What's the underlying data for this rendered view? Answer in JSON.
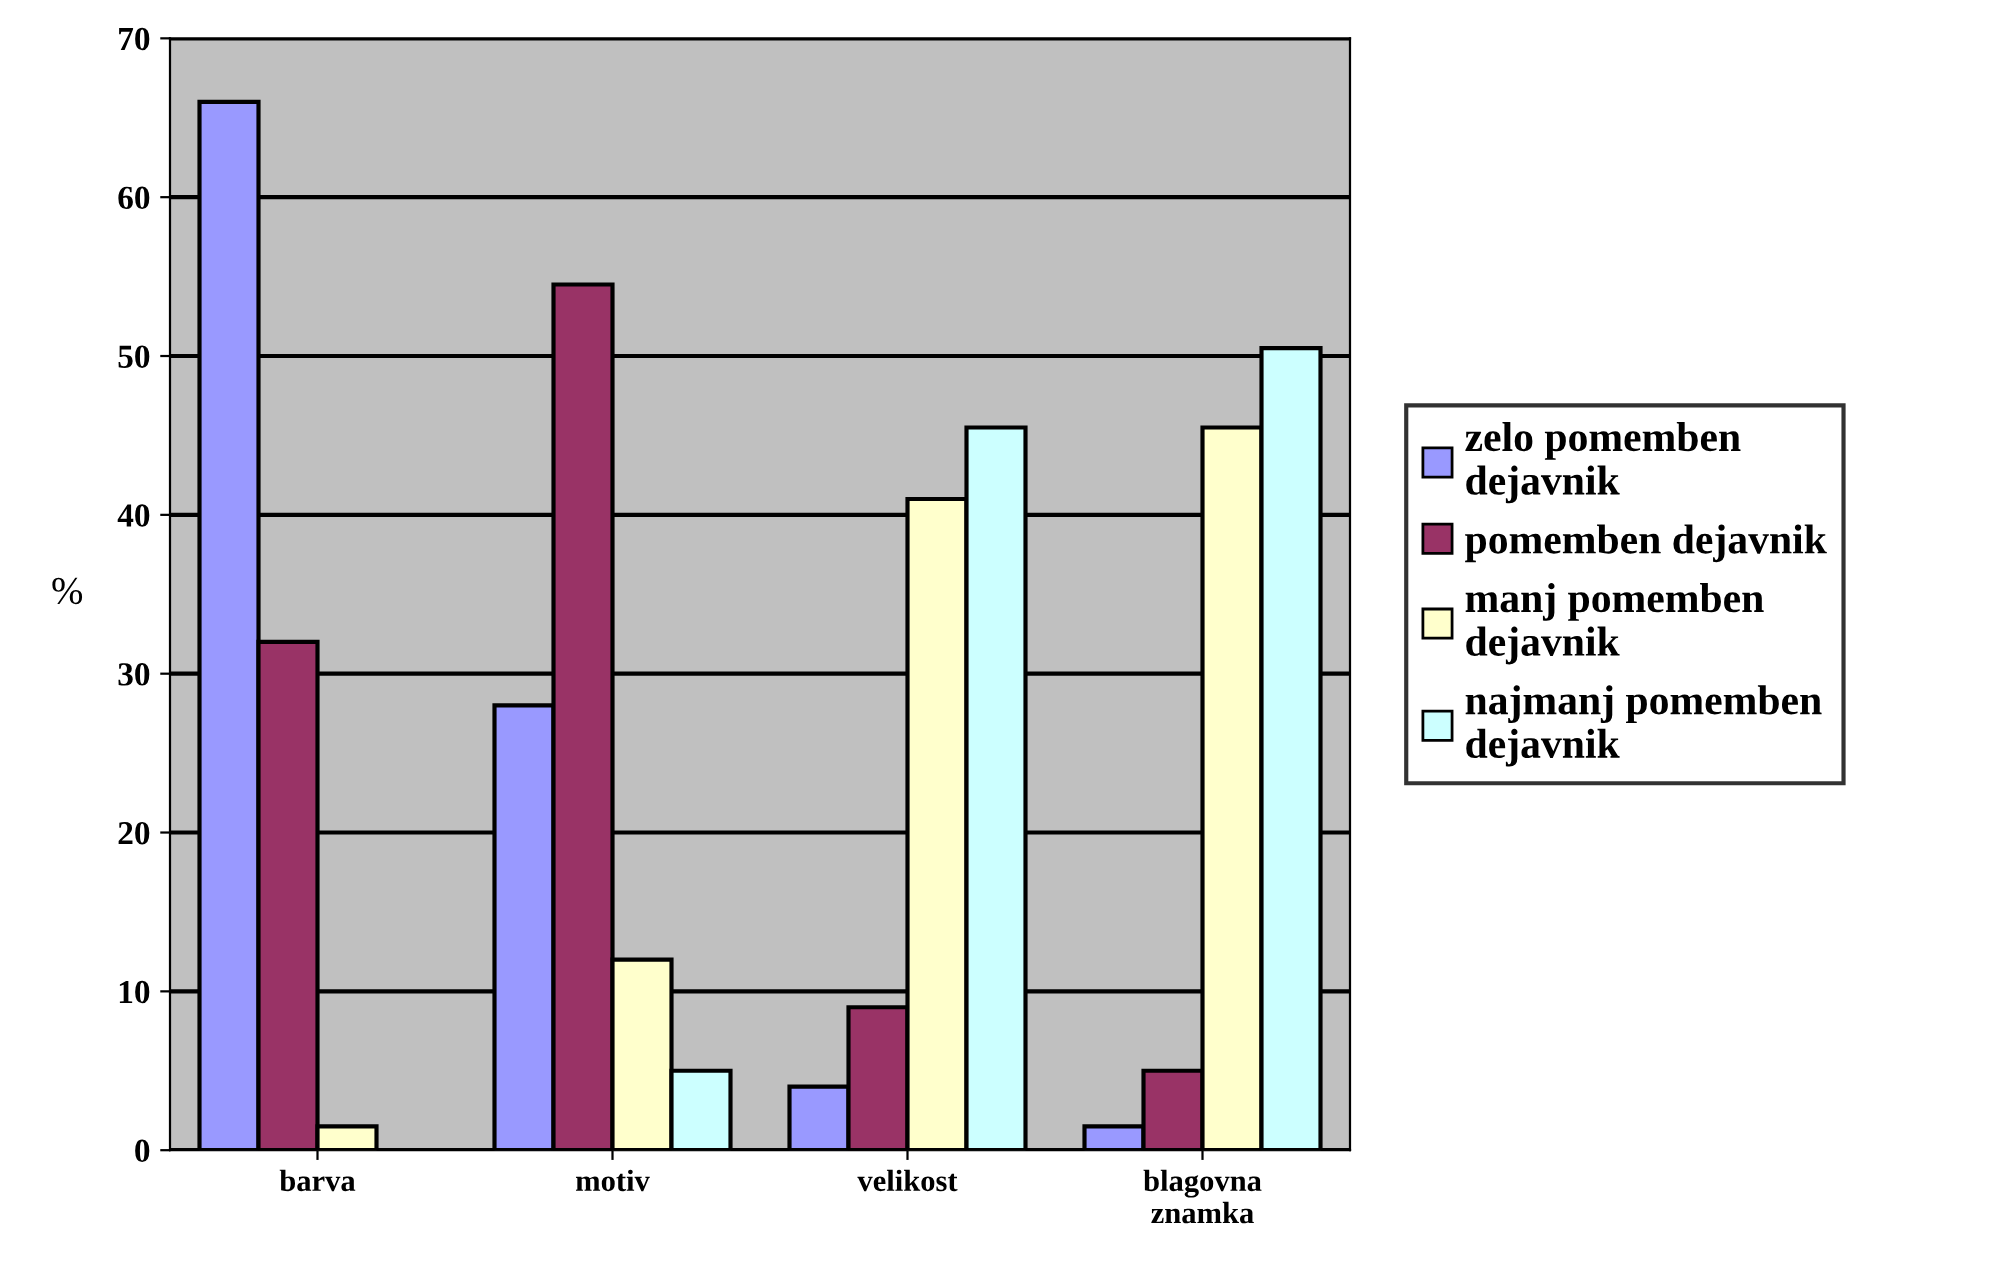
{
  "chart_data": {
    "type": "bar",
    "ylabel": "%",
    "categories": [
      "barva",
      "motiv",
      "velikost",
      "blagovna znamka"
    ],
    "series": [
      {
        "name": "zelo pomemben dejavnik",
        "color": "#9999ff",
        "values": [
          66,
          28,
          4,
          1.5
        ]
      },
      {
        "name": "pomemben dejavnik",
        "color": "#993366",
        "values": [
          32,
          54.5,
          9,
          5
        ]
      },
      {
        "name": "manj pomemben dejavnik",
        "color": "#ffffcc",
        "values": [
          1.5,
          12,
          41,
          45.5
        ]
      },
      {
        "name": "najmanj pomemben dejavnik",
        "color": "#ccffff",
        "values": [
          null,
          5,
          45.5,
          50.5
        ]
      }
    ],
    "ylim": [
      0,
      70
    ],
    "yticks": [
      0,
      10,
      20,
      30,
      40,
      50,
      60,
      70
    ],
    "grid": "y",
    "legend": "right"
  }
}
